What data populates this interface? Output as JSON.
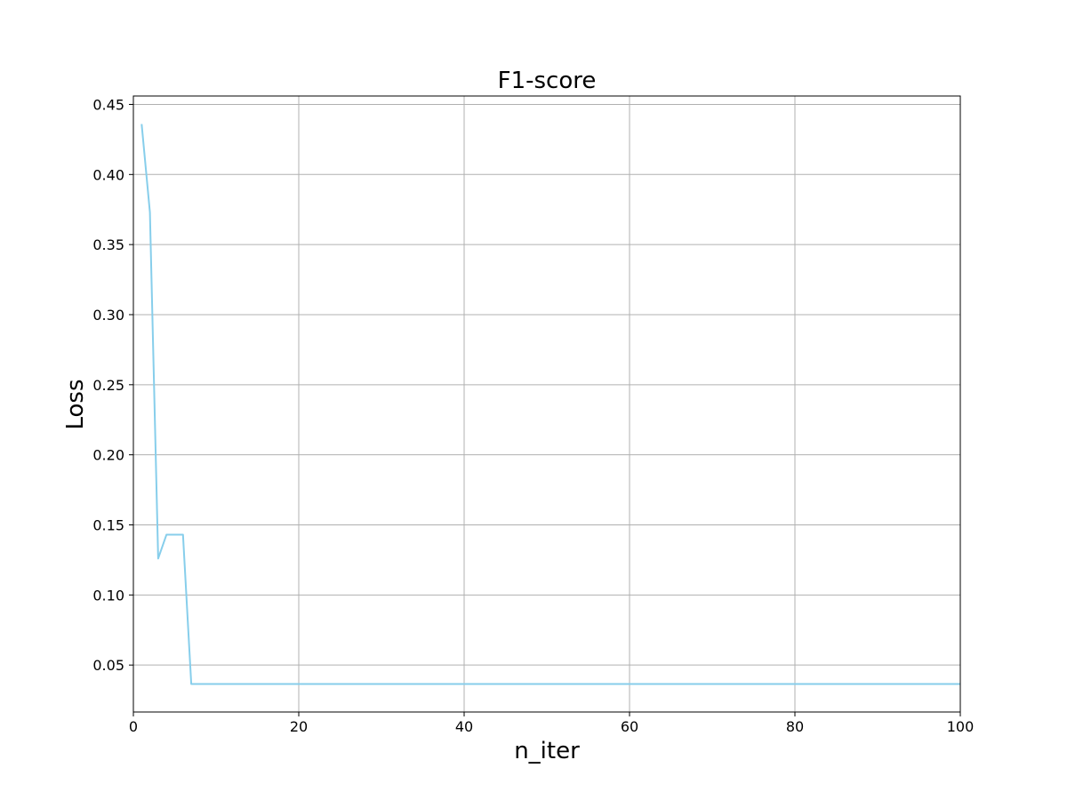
{
  "chart_data": {
    "type": "line",
    "title": "F1-score",
    "xlabel": "n_iter",
    "ylabel": "Loss",
    "xlim": [
      0,
      100
    ],
    "ylim": [
      0.0165,
      0.456
    ],
    "xticks": [
      0,
      20,
      40,
      60,
      80,
      100
    ],
    "xtick_labels": [
      "0",
      "20",
      "40",
      "60",
      "80",
      "100"
    ],
    "yticks": [
      0.05,
      0.1,
      0.15,
      0.2,
      0.25,
      0.3,
      0.35,
      0.4,
      0.45
    ],
    "ytick_labels": [
      "0.05",
      "0.10",
      "0.15",
      "0.20",
      "0.25",
      "0.30",
      "0.35",
      "0.40",
      "0.45"
    ],
    "grid": true,
    "series": [
      {
        "color": "#87ceeb",
        "x": [
          1,
          2,
          3,
          4,
          5,
          6,
          7,
          8,
          9,
          10,
          11,
          12,
          13,
          14,
          15,
          16,
          17,
          18,
          19,
          20,
          21,
          22,
          23,
          24,
          25,
          26,
          27,
          28,
          29,
          30,
          31,
          32,
          33,
          34,
          35,
          36,
          37,
          38,
          39,
          40,
          41,
          42,
          43,
          44,
          45,
          46,
          47,
          48,
          49,
          50,
          51,
          52,
          53,
          54,
          55,
          56,
          57,
          58,
          59,
          60,
          61,
          62,
          63,
          64,
          65,
          66,
          67,
          68,
          69,
          70,
          71,
          72,
          73,
          74,
          75,
          76,
          77,
          78,
          79,
          80,
          81,
          82,
          83,
          84,
          85,
          86,
          87,
          88,
          89,
          90,
          91,
          92,
          93,
          94,
          95,
          96,
          97,
          98,
          99,
          100
        ],
        "y": [
          0.436,
          0.373,
          0.126,
          0.143,
          0.143,
          0.143,
          0.0365,
          0.0365,
          0.0365,
          0.0365,
          0.0365,
          0.0365,
          0.0365,
          0.0365,
          0.0365,
          0.0365,
          0.0365,
          0.0365,
          0.0365,
          0.0365,
          0.0365,
          0.0365,
          0.0365,
          0.0365,
          0.0365,
          0.0365,
          0.0365,
          0.0365,
          0.0365,
          0.0365,
          0.0365,
          0.0365,
          0.0365,
          0.0365,
          0.0365,
          0.0365,
          0.0365,
          0.0365,
          0.0365,
          0.0365,
          0.0365,
          0.0365,
          0.0365,
          0.0365,
          0.0365,
          0.0365,
          0.0365,
          0.0365,
          0.0365,
          0.0365,
          0.0365,
          0.0365,
          0.0365,
          0.0365,
          0.0365,
          0.0365,
          0.0365,
          0.0365,
          0.0365,
          0.0365,
          0.0365,
          0.0365,
          0.0365,
          0.0365,
          0.0365,
          0.0365,
          0.0365,
          0.0365,
          0.0365,
          0.0365,
          0.0365,
          0.0365,
          0.0365,
          0.0365,
          0.0365,
          0.0365,
          0.0365,
          0.0365,
          0.0365,
          0.0365,
          0.0365,
          0.0365,
          0.0365,
          0.0365,
          0.0365,
          0.0365,
          0.0365,
          0.0365,
          0.0365,
          0.0365,
          0.0365,
          0.0365,
          0.0365,
          0.0365,
          0.0365,
          0.0365,
          0.0365,
          0.0365,
          0.0365,
          0.0365
        ]
      }
    ]
  },
  "colors": {
    "line": "#87ceeb",
    "grid": "#b0b0b0",
    "axes": "#000000",
    "background": "#ffffff"
  }
}
